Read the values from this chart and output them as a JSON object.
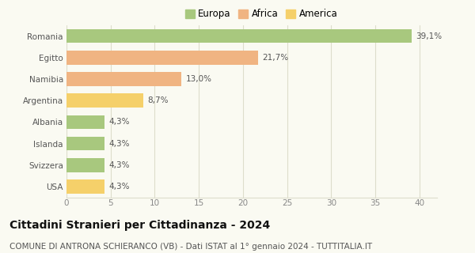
{
  "categories": [
    "Romania",
    "Egitto",
    "Namibia",
    "Argentina",
    "Albania",
    "Islanda",
    "Svizzera",
    "USA"
  ],
  "values": [
    39.1,
    21.7,
    13.0,
    8.7,
    4.3,
    4.3,
    4.3,
    4.3
  ],
  "labels": [
    "39,1%",
    "21,7%",
    "13,0%",
    "8,7%",
    "4,3%",
    "4,3%",
    "4,3%",
    "4,3%"
  ],
  "bar_colors": [
    "#a8c87e",
    "#f0b482",
    "#f0b482",
    "#f5d06a",
    "#a8c87e",
    "#a8c87e",
    "#a8c87e",
    "#f5d06a"
  ],
  "legend_labels": [
    "Europa",
    "Africa",
    "America"
  ],
  "legend_colors": [
    "#a8c87e",
    "#f0b482",
    "#f5d06a"
  ],
  "xlim": [
    0,
    42
  ],
  "xticks": [
    0,
    5,
    10,
    15,
    20,
    25,
    30,
    35,
    40
  ],
  "title": "Cittadini Stranieri per Cittadinanza - 2024",
  "subtitle": "COMUNE DI ANTRONA SCHIERANCO (VB) - Dati ISTAT al 1° gennaio 2024 - TUTTITALIA.IT",
  "background_color": "#fafaf2",
  "grid_color": "#ddddcc",
  "bar_height": 0.65,
  "title_fontsize": 10,
  "subtitle_fontsize": 7.5,
  "label_fontsize": 7.5,
  "tick_fontsize": 7.5,
  "legend_fontsize": 8.5
}
